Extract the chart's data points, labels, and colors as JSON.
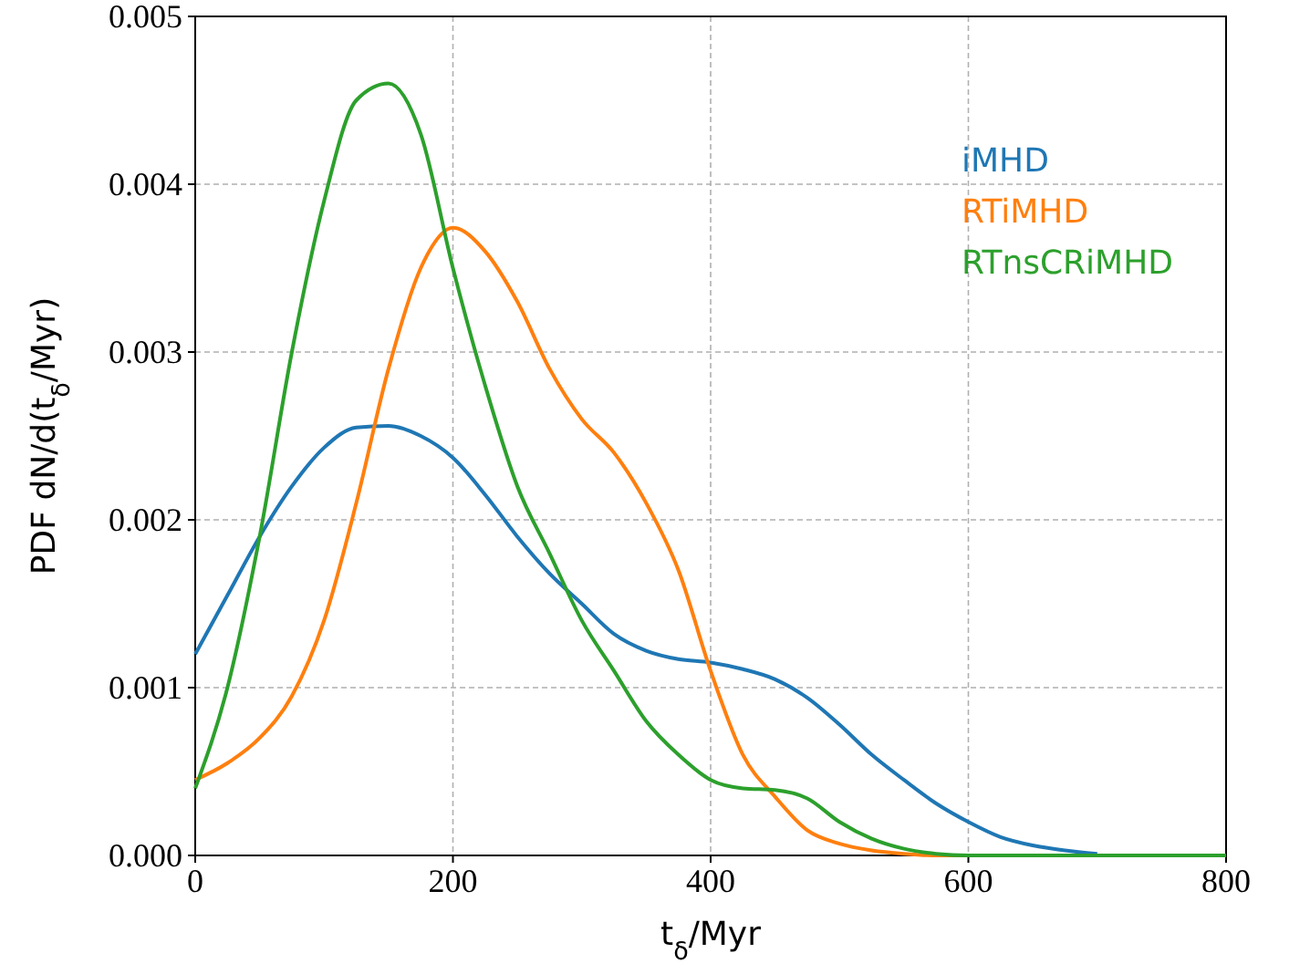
{
  "chart_data": {
    "type": "line",
    "xlabel": "t$_{δ}$/Myr",
    "ylabel": "PDF dN/d(t$_{δ}$/Myr)",
    "x": [
      0,
      25,
      50,
      75,
      100,
      125,
      150,
      175,
      200,
      225,
      250,
      275,
      300,
      325,
      350,
      375,
      400,
      425,
      450,
      475,
      500,
      525,
      550,
      575,
      600,
      625,
      650,
      675,
      700,
      725,
      750,
      775,
      800
    ],
    "series": [
      {
        "name": "iMHD",
        "color": "#1f77b4",
        "values": [
          0.0012,
          0.00155,
          0.0019,
          0.0022,
          0.00243,
          0.00255,
          0.00256,
          0.0025,
          0.00237,
          0.00215,
          0.0019,
          0.00168,
          0.0015,
          0.00132,
          0.00122,
          0.00117,
          0.00115,
          0.00111,
          0.00105,
          0.00094,
          0.00078,
          0.0006,
          0.00045,
          0.00031,
          0.0002,
          0.00011,
          6e-05,
          3e-05,
          1e-05,
          null,
          null,
          null,
          null
        ]
      },
      {
        "name": "RTiMHD",
        "color": "#ff7f0e",
        "values": [
          0.00045,
          0.00055,
          0.0007,
          0.00095,
          0.0014,
          0.0021,
          0.0029,
          0.0035,
          0.00374,
          0.0036,
          0.0033,
          0.0029,
          0.0026,
          0.0024,
          0.0021,
          0.0017,
          0.0011,
          0.0006,
          0.00035,
          0.00015,
          7e-05,
          3e-05,
          1e-05,
          0,
          0,
          null,
          null,
          null,
          null,
          null,
          null,
          null,
          null
        ]
      },
      {
        "name": "RTnsCRiMHD",
        "color": "#2ca02c",
        "values": [
          0.0004,
          0.001,
          0.0019,
          0.003,
          0.0039,
          0.0045,
          0.0046,
          0.0043,
          0.0035,
          0.0028,
          0.0022,
          0.0018,
          0.0014,
          0.0011,
          0.0008,
          0.0006,
          0.00045,
          0.0004,
          0.00039,
          0.00034,
          0.0002,
          0.0001,
          4e-05,
          1e-05,
          0,
          0,
          0,
          0,
          0,
          0,
          0,
          0,
          0
        ]
      }
    ],
    "xlim": [
      0,
      800
    ],
    "xticks": [
      0,
      200,
      400,
      600,
      800
    ],
    "ylim": [
      0,
      0.005
    ],
    "yticks": [
      {
        "value": 0,
        "label": "0.000"
      },
      {
        "value": 0.001,
        "label": "0.001"
      },
      {
        "value": 0.002,
        "label": "0.002"
      },
      {
        "value": 0.003,
        "label": "0.003"
      },
      {
        "value": 0.004,
        "label": "0.004"
      },
      {
        "value": 0.005,
        "label": "0.005"
      }
    ],
    "grid": true,
    "legend": "top right",
    "line_style": "solid",
    "marker": "none"
  }
}
